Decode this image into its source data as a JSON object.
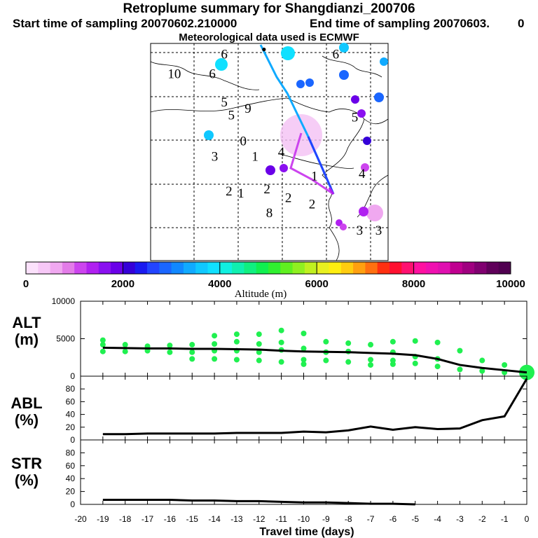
{
  "header": {
    "title": "Retroplume summary for Shangdianzi_200706",
    "start": "Start time of sampling 20070602.210000",
    "end": "End time of sampling 20070603.",
    "end_suffix": "0",
    "met": "Meteorological data used is ECMWF"
  },
  "map": {
    "labels": [
      {
        "text": "10",
        "lon": 0.1,
        "lat": 0.84
      },
      {
        "text": "6",
        "lon": 0.26,
        "lat": 0.84
      },
      {
        "text": "6",
        "lon": 0.31,
        "lat": 0.93
      },
      {
        "text": "5",
        "lon": 0.31,
        "lat": 0.71
      },
      {
        "text": "5",
        "lon": 0.34,
        "lat": 0.65
      },
      {
        "text": "9",
        "lon": 0.41,
        "lat": 0.68
      },
      {
        "text": "3",
        "lon": 0.27,
        "lat": 0.46
      },
      {
        "text": "0",
        "lon": 0.39,
        "lat": 0.53
      },
      {
        "text": "1",
        "lon": 0.44,
        "lat": 0.46
      },
      {
        "text": "4",
        "lon": 0.55,
        "lat": 0.48
      },
      {
        "text": "4",
        "lon": 0.89,
        "lat": 0.38
      },
      {
        "text": "2",
        "lon": 0.33,
        "lat": 0.3
      },
      {
        "text": "1",
        "lon": 0.38,
        "lat": 0.29
      },
      {
        "text": "2",
        "lon": 0.49,
        "lat": 0.31
      },
      {
        "text": "2",
        "lon": 0.58,
        "lat": 0.27
      },
      {
        "text": "2",
        "lon": 0.68,
        "lat": 0.24
      },
      {
        "text": "8",
        "lon": 0.5,
        "lat": 0.2
      },
      {
        "text": "3",
        "lon": 0.88,
        "lat": 0.12
      },
      {
        "text": "3",
        "lon": 0.96,
        "lat": 0.12
      },
      {
        "text": "5",
        "lon": 0.86,
        "lat": 0.64
      },
      {
        "text": "6",
        "lon": 0.78,
        "lat": 0.93
      }
    ],
    "markers": [
      {
        "label": "1",
        "lon": 0.69,
        "lat": 0.37
      }
    ]
  },
  "colorbar": {
    "ticks": [
      "0",
      "2000",
      "4000",
      "6000",
      "8000",
      "10000"
    ],
    "title": "Altitude (m)",
    "colors": [
      "#fbe1fb",
      "#f7c8f7",
      "#f0a8f0",
      "#e37ce8",
      "#cc44ee",
      "#b020f0",
      "#8a10f0",
      "#6a00e8",
      "#3500d8",
      "#1a1af0",
      "#2244ff",
      "#1a66ff",
      "#1188ff",
      "#10aaff",
      "#10c8ff",
      "#10e0ff",
      "#10f0e0",
      "#10f0b0",
      "#10f080",
      "#10f050",
      "#30f030",
      "#60f020",
      "#90f020",
      "#c0f020",
      "#e8f020",
      "#ffee10",
      "#ffcc10",
      "#ffa010",
      "#ff7010",
      "#ff3010",
      "#ff1030",
      "#ff1070",
      "#ff10a0",
      "#f010b0",
      "#e010b0",
      "#c00090",
      "#a00080",
      "#800070",
      "#60005a",
      "#500050"
    ]
  },
  "chart_data": [
    {
      "type": "line",
      "panel": "ALT",
      "ylabel": "ALT",
      "yunit": "(m)",
      "ylim": [
        0,
        10000
      ],
      "yticks": [
        "0",
        "5000",
        "10000"
      ],
      "x": [
        -19,
        -18,
        -17,
        -16,
        -15,
        -14,
        -13,
        -12,
        -11,
        -10,
        -9,
        -8,
        -7,
        -6,
        -5,
        -4,
        -3,
        -2,
        -1,
        0
      ],
      "values": [
        3800,
        3750,
        3700,
        3700,
        3650,
        3650,
        3600,
        3550,
        3400,
        3300,
        3250,
        3200,
        3100,
        3000,
        2800,
        2300,
        1500,
        1100,
        800,
        500
      ],
      "points": [
        {
          "x": -19,
          "y": 4800
        },
        {
          "x": -19,
          "y": 4200
        },
        {
          "x": -19,
          "y": 3300
        },
        {
          "x": -18,
          "y": 4200
        },
        {
          "x": -18,
          "y": 3300
        },
        {
          "x": -17,
          "y": 4000
        },
        {
          "x": -17,
          "y": 3400
        },
        {
          "x": -16,
          "y": 4100
        },
        {
          "x": -16,
          "y": 3200
        },
        {
          "x": -15,
          "y": 4200
        },
        {
          "x": -15,
          "y": 3200
        },
        {
          "x": -15,
          "y": 2300
        },
        {
          "x": -14,
          "y": 5400
        },
        {
          "x": -14,
          "y": 4300
        },
        {
          "x": -14,
          "y": 3400
        },
        {
          "x": -14,
          "y": 2300
        },
        {
          "x": -13,
          "y": 5600
        },
        {
          "x": -13,
          "y": 4600
        },
        {
          "x": -13,
          "y": 3400
        },
        {
          "x": -13,
          "y": 2200
        },
        {
          "x": -12,
          "y": 5600
        },
        {
          "x": -12,
          "y": 4300
        },
        {
          "x": -12,
          "y": 3200
        },
        {
          "x": -12,
          "y": 2100
        },
        {
          "x": -11,
          "y": 6100
        },
        {
          "x": -11,
          "y": 4500
        },
        {
          "x": -11,
          "y": 3500
        },
        {
          "x": -11,
          "y": 1900
        },
        {
          "x": -10,
          "y": 5700
        },
        {
          "x": -10,
          "y": 3700
        },
        {
          "x": -10,
          "y": 2200
        },
        {
          "x": -10,
          "y": 1600
        },
        {
          "x": -9,
          "y": 4600
        },
        {
          "x": -9,
          "y": 3200
        },
        {
          "x": -9,
          "y": 2100
        },
        {
          "x": -8,
          "y": 4400
        },
        {
          "x": -8,
          "y": 3300
        },
        {
          "x": -8,
          "y": 1900
        },
        {
          "x": -7,
          "y": 4200
        },
        {
          "x": -7,
          "y": 2200
        },
        {
          "x": -7,
          "y": 1500
        },
        {
          "x": -6,
          "y": 4600
        },
        {
          "x": -6,
          "y": 3200
        },
        {
          "x": -6,
          "y": 2100
        },
        {
          "x": -6,
          "y": 1600
        },
        {
          "x": -5,
          "y": 4700
        },
        {
          "x": -5,
          "y": 2600
        },
        {
          "x": -5,
          "y": 1700
        },
        {
          "x": -4,
          "y": 4500
        },
        {
          "x": -4,
          "y": 2300
        },
        {
          "x": -4,
          "y": 1300
        },
        {
          "x": -3,
          "y": 3400
        },
        {
          "x": -3,
          "y": 900
        },
        {
          "x": -2,
          "y": 2100
        },
        {
          "x": -2,
          "y": 700
        },
        {
          "x": -1,
          "y": 1500
        },
        {
          "x": -1,
          "y": 500
        },
        {
          "x": 0,
          "y": 900
        },
        {
          "x": 0,
          "y": 500
        }
      ]
    },
    {
      "type": "line",
      "panel": "ABL",
      "ylabel": "ABL",
      "yunit": "(%)",
      "ylim": [
        0,
        100
      ],
      "yticks": [
        "0",
        "20",
        "40",
        "60",
        "80"
      ],
      "x": [
        -19,
        -18,
        -17,
        -16,
        -15,
        -14,
        -13,
        -12,
        -11,
        -10,
        -9,
        -8,
        -7,
        -6,
        -5,
        -4,
        -3,
        -2,
        -1,
        0
      ],
      "values": [
        9,
        9,
        10,
        10,
        10,
        10,
        11,
        11,
        11,
        13,
        12,
        15,
        21,
        16,
        20,
        17,
        18,
        31,
        37,
        96
      ]
    },
    {
      "type": "line",
      "panel": "STR",
      "ylabel": "STR",
      "yunit": "(%)",
      "ylim": [
        0,
        100
      ],
      "yticks": [
        "0",
        "20",
        "40",
        "60",
        "80"
      ],
      "x": [
        -19,
        -18,
        -17,
        -16,
        -15,
        -14,
        -13,
        -12,
        -11,
        -10,
        -9,
        -8,
        -7,
        -6,
        -5
      ],
      "values": [
        7,
        7,
        7,
        7,
        6,
        6,
        5,
        5,
        4,
        3,
        3,
        2,
        1,
        1,
        0
      ]
    }
  ],
  "xaxis": {
    "label": "Travel time (days)",
    "ticks": [
      "-20",
      "-19",
      "-18",
      "-17",
      "-16",
      "-15",
      "-14",
      "-13",
      "-12",
      "-11",
      "-10",
      "-9",
      "-8",
      "-7",
      "-6",
      "-5",
      "-4",
      "-3",
      "-2",
      "-1",
      "0"
    ]
  }
}
